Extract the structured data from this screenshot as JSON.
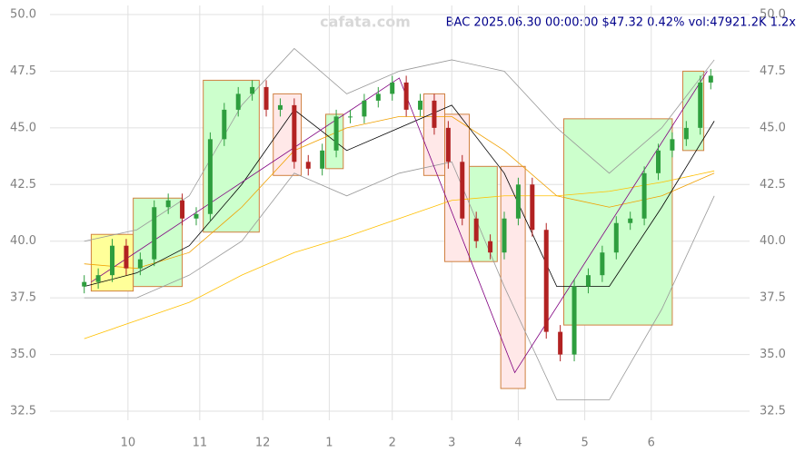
{
  "chart_data": {
    "type": "candlestick",
    "title": "BAC 2025.06.30 00:00:00 $47.32 0.42% vol:47921.2K 1.2x",
    "watermark": "cafata.com",
    "x": [
      0,
      4,
      8,
      12,
      16,
      20,
      24,
      28,
      32,
      36,
      40,
      44,
      48,
      52,
      56,
      60,
      64,
      68,
      72,
      76,
      80,
      84,
      88,
      92,
      96,
      100,
      104,
      108,
      112,
      116,
      120,
      124,
      128,
      132,
      136,
      140,
      144,
      148,
      152,
      156,
      160,
      164,
      168,
      172,
      176,
      179
    ],
    "open": [
      38.0,
      38.2,
      38.5,
      39.8,
      38.8,
      39.2,
      41.5,
      41.8,
      41.0,
      41.2,
      44.5,
      45.8,
      46.5,
      46.8,
      45.8,
      46.0,
      43.5,
      43.2,
      44.0,
      45.5,
      45.5,
      46.2,
      46.5,
      47.0,
      45.8,
      46.2,
      45.0,
      43.5,
      41.0,
      40.0,
      39.5,
      41.0,
      42.5,
      40.5,
      36.0,
      35.0,
      38.0,
      38.5,
      39.5,
      40.8,
      41.0,
      43.0,
      44.0,
      44.5,
      45.0,
      47.0
    ],
    "high": [
      38.5,
      38.8,
      40.1,
      40.1,
      39.5,
      41.8,
      42.1,
      42.1,
      41.5,
      44.8,
      46.1,
      46.8,
      47.1,
      47.1,
      46.3,
      46.3,
      43.8,
      44.3,
      45.8,
      45.8,
      46.5,
      46.8,
      47.3,
      47.3,
      46.5,
      46.5,
      45.3,
      43.8,
      41.3,
      40.3,
      41.3,
      42.8,
      42.8,
      40.8,
      36.3,
      38.3,
      38.8,
      39.8,
      41.1,
      41.3,
      43.3,
      44.3,
      44.8,
      45.3,
      47.3,
      47.6
    ],
    "low": [
      37.7,
      37.9,
      38.2,
      38.5,
      38.5,
      38.9,
      41.2,
      40.7,
      40.7,
      40.9,
      44.2,
      45.5,
      46.2,
      45.5,
      45.5,
      43.2,
      42.9,
      42.9,
      43.7,
      45.2,
      45.2,
      45.9,
      46.2,
      45.5,
      45.5,
      44.7,
      43.2,
      40.7,
      39.7,
      39.2,
      39.2,
      40.7,
      40.2,
      35.7,
      34.7,
      34.7,
      37.7,
      38.2,
      39.2,
      40.5,
      40.7,
      42.7,
      43.7,
      44.2,
      44.7,
      46.7
    ],
    "close": [
      38.2,
      38.5,
      39.8,
      38.8,
      39.2,
      41.5,
      41.8,
      41.0,
      41.2,
      44.5,
      45.8,
      46.5,
      46.8,
      45.8,
      46.0,
      43.5,
      43.2,
      44.0,
      45.5,
      45.5,
      46.2,
      46.5,
      47.0,
      45.8,
      46.2,
      45.0,
      43.5,
      41.0,
      40.0,
      39.5,
      41.0,
      42.5,
      40.5,
      36.0,
      35.0,
      38.0,
      38.5,
      39.5,
      40.8,
      41.0,
      43.0,
      44.0,
      44.5,
      45.0,
      47.0,
      47.3
    ],
    "up_color": "#2e9e3e",
    "down_color": "#b22222",
    "xlim": [
      -2,
      181
    ],
    "ylim": [
      32.5,
      50
    ],
    "yticks": [
      {
        "value": 32.5,
        "label": "32.5"
      },
      {
        "value": 35,
        "label": "35.0"
      },
      {
        "value": 37.5,
        "label": "37.5"
      },
      {
        "value": 40,
        "label": "40.0"
      },
      {
        "value": 42.5,
        "label": "42.5"
      },
      {
        "value": 45,
        "label": "45.0"
      },
      {
        "value": 47.5,
        "label": "47.5"
      },
      {
        "value": 50,
        "label": "50.0"
      }
    ],
    "xticks": [
      {
        "value": 12.5,
        "label": "10"
      },
      {
        "value": 33,
        "label": "11"
      },
      {
        "value": 51,
        "label": "12"
      },
      {
        "value": 70,
        "label": "1"
      },
      {
        "value": 88,
        "label": "2"
      },
      {
        "value": 105,
        "label": "3"
      },
      {
        "value": 124,
        "label": "4"
      },
      {
        "value": 143,
        "label": "5"
      },
      {
        "value": 162,
        "label": "6"
      }
    ],
    "grid": true,
    "boxes": [
      {
        "x": [
          2,
          14
        ],
        "y": [
          37.8,
          40.3
        ],
        "color": "#ffff99"
      },
      {
        "x": [
          14,
          28
        ],
        "y": [
          38.0,
          41.9
        ],
        "color": "#ccffcc"
      },
      {
        "x": [
          34,
          50
        ],
        "y": [
          40.4,
          47.1
        ],
        "color": "#ccffcc"
      },
      {
        "x": [
          54,
          62
        ],
        "y": [
          42.9,
          46.5
        ],
        "color": "#ffe8e8"
      },
      {
        "x": [
          69,
          74
        ],
        "y": [
          43.2,
          45.6
        ],
        "color": "#ccffcc"
      },
      {
        "x": [
          97,
          103
        ],
        "y": [
          42.9,
          46.5
        ],
        "color": "#ffe8e8"
      },
      {
        "x": [
          103,
          110
        ],
        "y": [
          39.1,
          45.6
        ],
        "color": "#ffe8e8"
      },
      {
        "x": [
          110,
          118
        ],
        "y": [
          39.1,
          43.3
        ],
        "color": "#ccffcc"
      },
      {
        "x": [
          119,
          126
        ],
        "y": [
          33.5,
          43.3
        ],
        "color": "#ffe8e8"
      },
      {
        "x": [
          137,
          168
        ],
        "y": [
          36.3,
          45.4
        ],
        "color": "#ccffcc"
      },
      {
        "x": [
          171,
          177
        ],
        "y": [
          44.0,
          47.5
        ],
        "color": "#ccffcc"
      }
    ],
    "overlay_x": [
      0,
      15,
      30,
      45,
      60,
      75,
      90,
      105,
      120,
      135,
      150,
      165,
      180
    ],
    "overlays": [
      {
        "color": "#999999",
        "values": [
          40,
          40.5,
          42,
          46,
          48.5,
          46.5,
          47.5,
          48,
          47.5,
          45,
          43,
          45,
          48
        ]
      },
      {
        "color": "#999999",
        "values": [
          37.5,
          37.5,
          38.5,
          40,
          43,
          42,
          43,
          43.5,
          38,
          33,
          33,
          37,
          42
        ]
      },
      {
        "color": "#ffc000",
        "values": [
          35.7,
          36.5,
          37.3,
          38.5,
          39.5,
          40.2,
          41,
          41.8,
          42,
          42,
          42.2,
          42.6,
          43.1
        ]
      },
      {
        "color": "#f0a000",
        "values": [
          39,
          38.8,
          39.5,
          41.5,
          44,
          45,
          45.5,
          45.5,
          44,
          42,
          41.5,
          42,
          43
        ]
      },
      {
        "color": "#000000",
        "values": [
          38,
          38.6,
          39.8,
          42.5,
          45.8,
          44,
          45,
          46,
          43,
          38,
          38,
          41.5,
          45.3
        ]
      }
    ],
    "trend": {
      "color": "#800080",
      "x": [
        2,
        90,
        123,
        178
      ],
      "y": [
        38.2,
        47.2,
        34.2,
        47.5
      ]
    }
  }
}
